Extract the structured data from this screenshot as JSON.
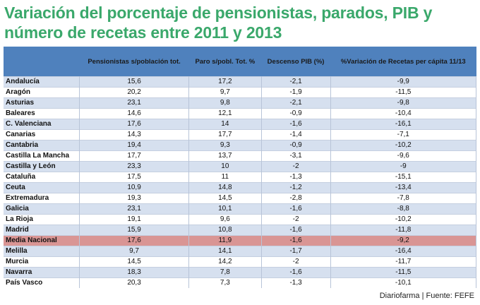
{
  "title": "Variación del porcentaje de pensionistas, parados, PIB y número de recetas entre 2011 y 2013",
  "columns": [
    "",
    "Pensionistas s/población tot.",
    "Paro s/pobl. Tot. %",
    "Descenso PIB (%)",
    "%Variación  de Recetas per cápita 11/13"
  ],
  "rows": [
    [
      "Andalucía",
      "15,6",
      "17,2",
      "-2,1",
      "-9,9"
    ],
    [
      "Aragón",
      "20,2",
      "9,7",
      "-1,9",
      "-11,5"
    ],
    [
      "Asturias",
      "23,1",
      "9,8",
      "-2,1",
      "-9,8"
    ],
    [
      "Baleares",
      "14,6",
      "12,1",
      "-0,9",
      "-10,4"
    ],
    [
      "C. Valenciana",
      "17,6",
      "14",
      "-1,6",
      "-16,1"
    ],
    [
      "Canarias",
      "14,3",
      "17,7",
      "-1,4",
      "-7,1"
    ],
    [
      "Cantabria",
      "19,4",
      "9,3",
      "-0,9",
      "-10,2"
    ],
    [
      "Castilla La Mancha",
      "17,7",
      "13,7",
      "-3,1",
      "-9,6"
    ],
    [
      "Castilla y León",
      "23,3",
      "10",
      "-2",
      "-9"
    ],
    [
      "Cataluña",
      "17,5",
      "11",
      "-1,3",
      "-15,1"
    ],
    [
      "Ceuta",
      "10,9",
      "14,8",
      "-1,2",
      "-13,4"
    ],
    [
      "Extremadura",
      "19,3",
      "14,5",
      "-2,8",
      "-7,8"
    ],
    [
      "Galicia",
      "23,1",
      "10,1",
      "-1,6",
      "-8,8"
    ],
    [
      "La Rioja",
      "19,1",
      "9,6",
      "-2",
      "-10,2"
    ],
    [
      "Madrid",
      "15,9",
      "10,8",
      "-1,6",
      "-11,8"
    ],
    [
      "Media Nacional",
      "17,6",
      "11,9",
      "-1,6",
      "-9,2"
    ],
    [
      "Melilla",
      "9,7",
      "14,1",
      "-1,7",
      "-16,4"
    ],
    [
      "Murcia",
      "14,5",
      "14,2",
      "-2",
      "-11,7"
    ],
    [
      "Navarra",
      "18,3",
      "7,8",
      "-1,6",
      "-11,5"
    ],
    [
      "País Vasco",
      "20,3",
      "7,3",
      "-1,3",
      "-10,1"
    ]
  ],
  "highlight_row": 15,
  "footer": "Diariofarma | Fuente: FEFE"
}
